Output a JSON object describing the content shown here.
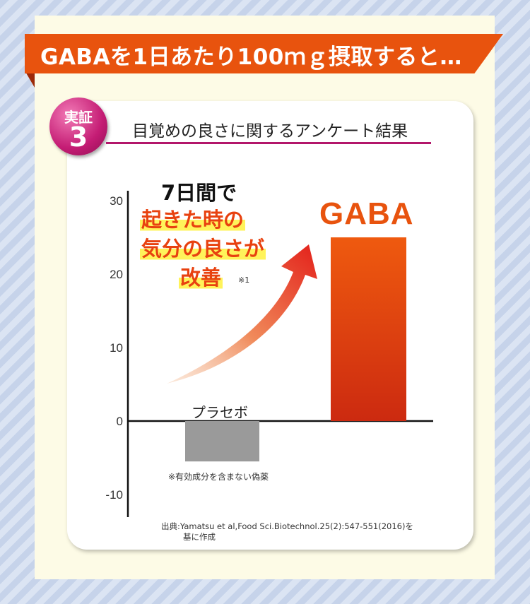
{
  "banner": {
    "title": "GABAを1日あたり100ｍｇ摂取すると…"
  },
  "badge": {
    "top": "実証",
    "number": "3"
  },
  "subtitle": "目覚めの良さに関するアンケート結果",
  "headline": {
    "line1": "7日間で",
    "line2": "起きた時の",
    "line3": "気分の良さが",
    "line4": "改善",
    "footnote_mark": "※1"
  },
  "gaba_label": "GABA",
  "placebo_label": "プラセボ",
  "placebo_note": "※有効成分を含まない偽薬",
  "source": {
    "line1": "出典:Yamatsu et al,Food Sci.Biotechnol.25(2):547-551(2016)を",
    "line2": "基に作成"
  },
  "colors": {
    "banner": "#e8530e",
    "badge": "#c41c74",
    "gaba_bar_top": "#ef5a0f",
    "gaba_bar_bottom": "#cc2a10",
    "placebo_bar": "#9a9a9a",
    "arrow": "#e8361a"
  },
  "chart_data": {
    "type": "bar",
    "categories": [
      "プラセボ",
      "GABA"
    ],
    "values": [
      -5.5,
      25
    ],
    "ylim": [
      -10,
      30
    ],
    "yticks": [
      "30",
      "20",
      "10",
      "0",
      "-10"
    ],
    "ytick_values": [
      30,
      20,
      10,
      0,
      -10
    ],
    "grid": false,
    "legend": "none"
  }
}
